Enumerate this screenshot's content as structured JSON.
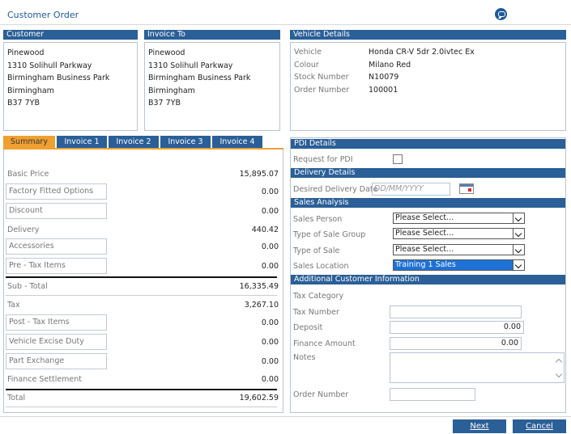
{
  "page": {
    "title": "Customer Order",
    "chat_icon": "chat-icon"
  },
  "customer": {
    "header": "Customer",
    "lines": [
      "Pinewood",
      "1310 Solihull Parkway",
      "Birmingham Business Park",
      "Birmingham",
      "B37 7YB"
    ]
  },
  "invoice_to": {
    "header": "Invoice To",
    "lines": [
      "Pinewood",
      "1310 Solihull Parkway",
      "Birmingham Business Park",
      "Birmingham",
      "B37 7YB"
    ]
  },
  "vehicle": {
    "header": "Vehicle Details",
    "rows": [
      {
        "label": "Vehicle",
        "value": "Honda CR-V 5dr 2.0ivtec Ex"
      },
      {
        "label": "Colour",
        "value": "Milano Red"
      },
      {
        "label": "Stock Number",
        "value": "N10079"
      },
      {
        "label": "Order Number",
        "value": "100001"
      }
    ]
  },
  "tabs": [
    "Summary",
    "Invoice 1",
    "Invoice 2",
    "Invoice 3",
    "Invoice 4"
  ],
  "active_tab": "Summary",
  "summary": {
    "basic_price": {
      "label": "Basic Price",
      "value": "15,895.07"
    },
    "factory_options": {
      "label": "Factory Fitted Options",
      "value": "0.00"
    },
    "discount": {
      "label": "Discount",
      "value": "0.00"
    },
    "delivery": {
      "label": "Delivery",
      "value": "440.42"
    },
    "accessories": {
      "label": "Accessories",
      "value": "0.00"
    },
    "pre_tax_items": {
      "label": "Pre - Tax Items",
      "value": "0.00"
    },
    "sub_total": {
      "label": "Sub - Total",
      "value": "16,335.49"
    },
    "tax": {
      "label": "Tax",
      "value": "3,267.10"
    },
    "post_tax_items": {
      "label": "Post - Tax Items",
      "value": "0.00"
    },
    "vehicle_excise_duty": {
      "label": "Vehicle Excise Duty",
      "value": "0.00"
    },
    "part_exchange": {
      "label": "Part Exchange",
      "value": "0.00"
    },
    "finance_settlement": {
      "label": "Finance Settlement",
      "value": "0.00"
    },
    "total": {
      "label": "Total",
      "value": "19,602.59"
    }
  },
  "pdi": {
    "header": "PDI Details",
    "request_label": "Request for PDI",
    "checked": false
  },
  "delivery": {
    "header": "Delivery Details",
    "date_label": "Desired Delivery Date",
    "date_placeholder": "DD/MM/YYYY"
  },
  "sales": {
    "header": "Sales Analysis",
    "person_label": "Sales Person",
    "person_value": "Please Select...",
    "group_label": "Type of Sale Group",
    "group_value": "Please Select...",
    "type_label": "Type of Sale",
    "type_value": "Please Select...",
    "location_label": "Sales Location",
    "location_value": "Training 1 Sales"
  },
  "additional": {
    "header": "Additional Customer Information",
    "tax_category_label": "Tax Category",
    "tax_number_label": "Tax Number",
    "tax_number_value": "",
    "deposit_label": "Deposit",
    "deposit_value": "0.00",
    "finance_label": "Finance Amount",
    "finance_value": "0.00",
    "notes_label": "Notes",
    "order_number_label": "Order Number",
    "order_number_value": ""
  },
  "buttons": {
    "next": "Next",
    "cancel": "Cancel"
  },
  "colors": {
    "header_blue": "#2a5f97",
    "active_tab": "#f0a030",
    "highlight_select": "#1e72d6"
  }
}
